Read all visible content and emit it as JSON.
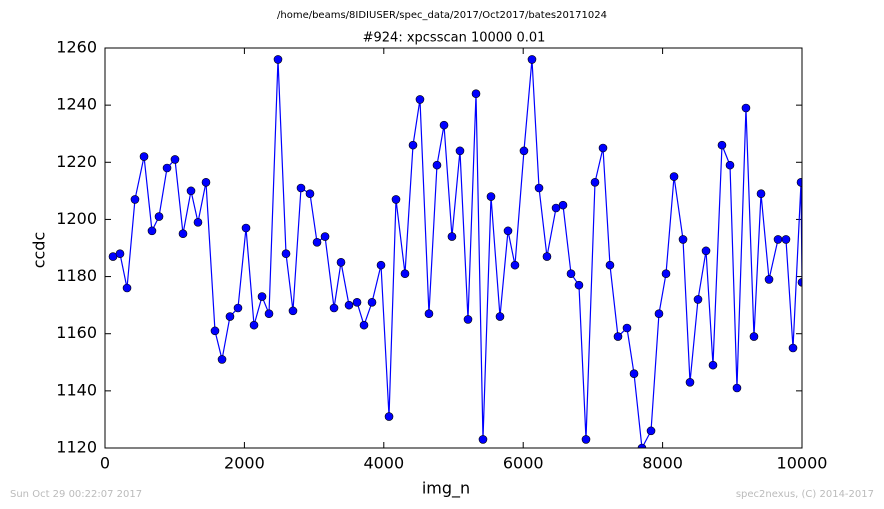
{
  "chart_data": {
    "type": "line",
    "suptitle": "/home/beams/8IDIUSER/spec_data/2017/Oct2017/bates20171024",
    "title": "#924: xpcsscan 10000 0.01",
    "xlabel": "img_n",
    "ylabel": "ccdc",
    "footer_left": "Sun Oct 29 00:22:07 2017",
    "footer_right": "spec2nexus, (C) 2014-2017",
    "color": "#0000ff",
    "marker_edge": "#000000",
    "x": [
      115,
      215,
      316,
      430,
      560,
      674,
      775,
      890,
      1004,
      1119,
      1234,
      1334,
      1449,
      1578,
      1679,
      1793,
      1908,
      2023,
      2138,
      2253,
      2353,
      2482,
      2597,
      2697,
      2812,
      2941,
      3042,
      3157,
      3286,
      3386,
      3501,
      3616,
      3716,
      3831,
      3960,
      4075,
      4175,
      4304,
      4419,
      4519,
      4648,
      4763,
      4864,
      4978,
      5093,
      5208,
      5323,
      5423,
      5538,
      5667,
      5782,
      5882,
      6011,
      6126,
      6227,
      6341,
      6471,
      6571,
      6686,
      6800,
      6901,
      7030,
      7145,
      7245,
      7360,
      7489,
      7590,
      7704,
      7834,
      7948,
      8049,
      8164,
      8293,
      8393,
      8508,
      8623,
      8723,
      8852,
      8967,
      9067,
      9196,
      9311,
      9412,
      9527,
      9656,
      9770,
      9871,
      9986,
      10000
    ],
    "values": [
      1187,
      1188,
      1176,
      1207,
      1222,
      1196,
      1201,
      1218,
      1221,
      1195,
      1210,
      1199,
      1213,
      1161,
      1151,
      1166,
      1169,
      1197,
      1163,
      1173,
      1167,
      1256,
      1188,
      1168,
      1211,
      1209,
      1192,
      1194,
      1169,
      1185,
      1170,
      1171,
      1163,
      1171,
      1184,
      1131,
      1207,
      1181,
      1226,
      1242,
      1167,
      1219,
      1233,
      1194,
      1224,
      1165,
      1244,
      1123,
      1208,
      1166,
      1196,
      1184,
      1224,
      1256,
      1211,
      1187,
      1204,
      1205,
      1181,
      1177,
      1123,
      1213,
      1225,
      1184,
      1159,
      1162,
      1146,
      1120,
      1126,
      1167,
      1181,
      1215,
      1193,
      1143,
      1172,
      1189,
      1149,
      1226,
      1219,
      1141,
      1239,
      1159,
      1209,
      1179,
      1193,
      1193,
      1155,
      1213,
      1178
    ],
    "xlim": [
      0,
      10000
    ],
    "xticks": [
      0,
      2000,
      4000,
      6000,
      8000,
      10000
    ],
    "ylim": [
      1120,
      1260
    ],
    "yticks": [
      1120,
      1140,
      1160,
      1180,
      1200,
      1220,
      1240,
      1260
    ],
    "grid": false
  }
}
